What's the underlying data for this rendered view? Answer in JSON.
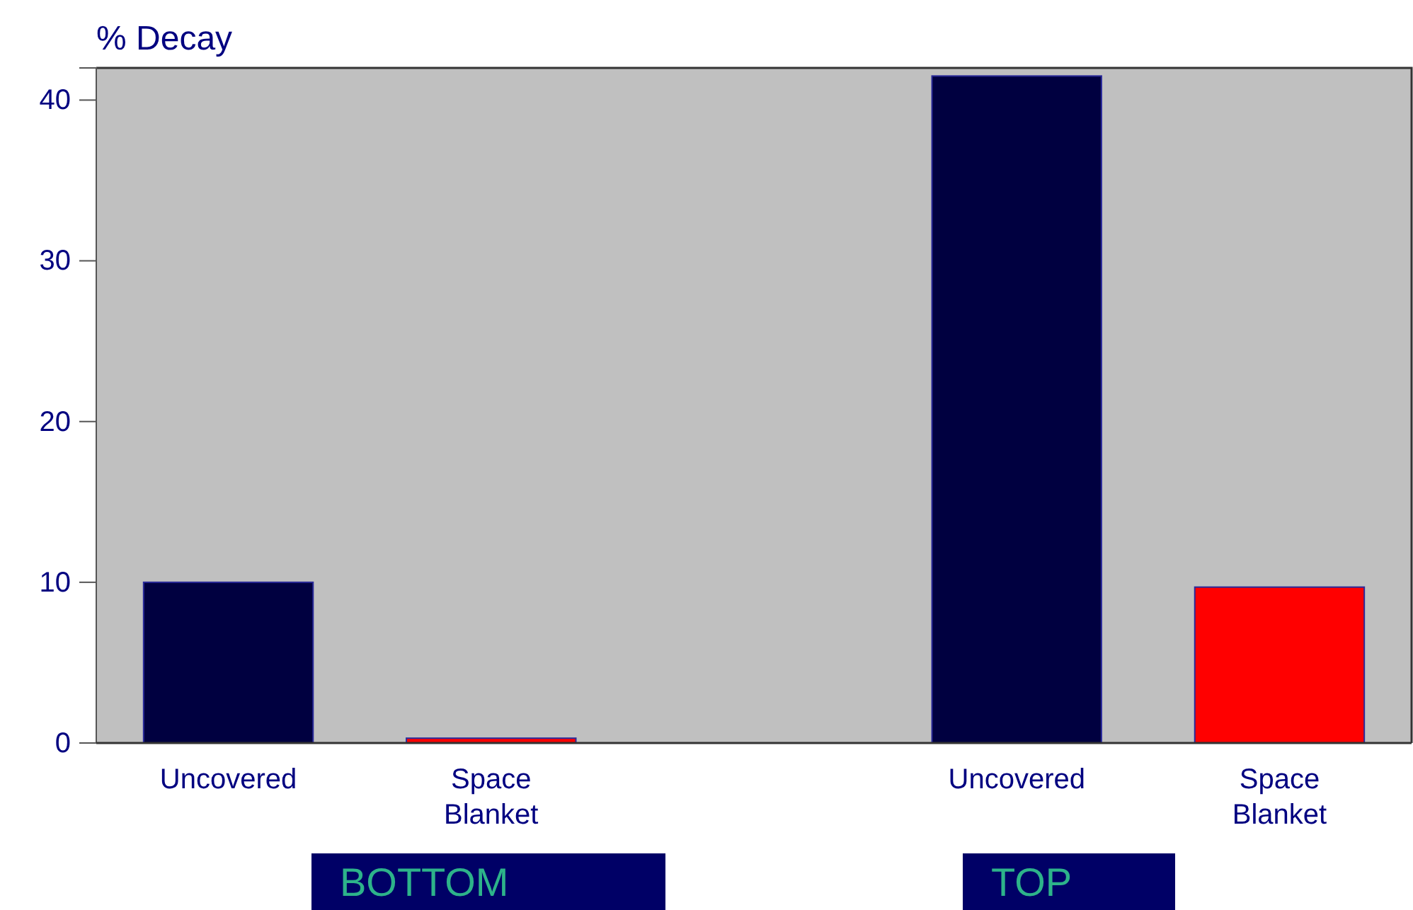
{
  "chart_data": {
    "type": "bar",
    "ylabel": "% Decay",
    "categories": [
      "Uncovered",
      "Space Blanket",
      null,
      "Uncovered",
      "Space Blanket"
    ],
    "values": [
      10.0,
      0.3,
      null,
      41.5,
      9.7
    ],
    "colors": [
      "#000040",
      "#ff0000",
      null,
      "#000040",
      "#ff0000"
    ],
    "ylim": [
      0,
      42
    ],
    "yticks": [
      0,
      10,
      20,
      30,
      40
    ],
    "grid": false,
    "annotations": [
      "BOTTOM",
      "TOP"
    ]
  }
}
